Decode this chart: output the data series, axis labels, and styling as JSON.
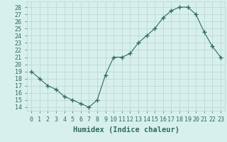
{
  "x": [
    0,
    1,
    2,
    3,
    4,
    5,
    6,
    7,
    8,
    9,
    10,
    11,
    12,
    13,
    14,
    15,
    16,
    17,
    18,
    19,
    20,
    21,
    22,
    23
  ],
  "y": [
    19,
    18,
    17,
    16.5,
    15.5,
    15,
    14.5,
    14,
    15,
    18.5,
    21,
    21,
    21.5,
    23,
    24,
    25,
    26.5,
    27.5,
    28,
    28,
    27,
    24.5,
    22.5,
    21
  ],
  "line_color": "#2e6b5e",
  "marker": "+",
  "marker_size": 4,
  "bg_color": "#d8f0ec",
  "grid_color": "#b8d4d0",
  "xlabel": "Humidex (Indice chaleur)",
  "xlim": [
    -0.5,
    23.5
  ],
  "ylim": [
    13.5,
    28.8
  ],
  "yticks": [
    14,
    15,
    16,
    17,
    18,
    19,
    20,
    21,
    22,
    23,
    24,
    25,
    26,
    27,
    28
  ],
  "xticks": [
    0,
    1,
    2,
    3,
    4,
    5,
    6,
    7,
    8,
    9,
    10,
    11,
    12,
    13,
    14,
    15,
    16,
    17,
    18,
    19,
    20,
    21,
    22,
    23
  ],
  "tick_color": "#2e6b5e",
  "label_color": "#2e6b5e",
  "xlabel_fontsize": 7.5,
  "tick_fontsize": 6
}
